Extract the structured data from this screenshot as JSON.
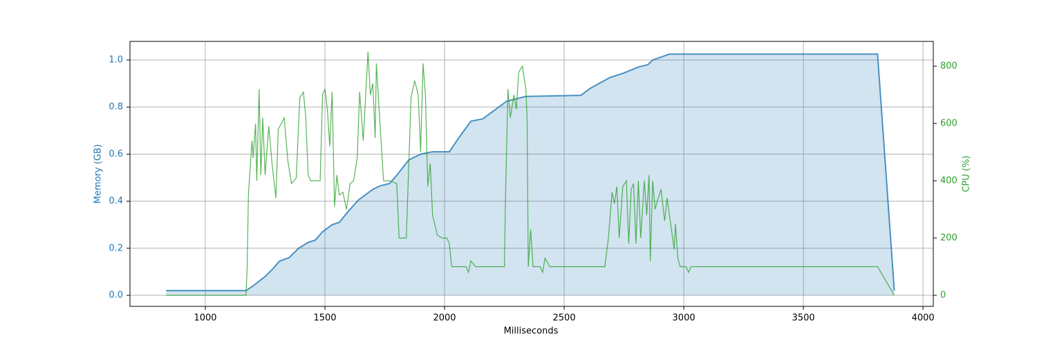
{
  "chart_data": {
    "type": "line",
    "xlabel": "Milliseconds",
    "ylabel": "Memory (GB)",
    "y2label": "CPU (%)",
    "xlim": [
      685,
      4043
    ],
    "ylim": [
      -0.047,
      1.079
    ],
    "y2lim": [
      -38.6,
      886.7
    ],
    "xticks": [
      1000,
      1500,
      2000,
      2500,
      3000,
      3500,
      4000
    ],
    "yticks": [
      {
        "value": 0,
        "label": "0.0"
      },
      0.2,
      0.4,
      0.6,
      0.8,
      {
        "value": 1,
        "label": "1.0"
      }
    ],
    "y2ticks": [
      0,
      200,
      400,
      600,
      800
    ],
    "grid": true,
    "series": [
      {
        "name": "Memory (GB)",
        "color": "#1f77b4",
        "fill": true,
        "x": [
          836,
          1170,
          1200,
          1250,
          1280,
          1310,
          1350,
          1390,
          1430,
          1460,
          1490,
          1530,
          1560,
          1600,
          1640,
          1700,
          1730,
          1770,
          1800,
          1850,
          1900,
          1950,
          2020,
          2060,
          2110,
          2160,
          2200,
          2260,
          2300,
          2340,
          2570,
          2610,
          2690,
          2750,
          2810,
          2850,
          2870,
          2940,
          3810,
          3880
        ],
        "values": [
          0.02,
          0.02,
          0.04,
          0.08,
          0.11,
          0.145,
          0.16,
          0.2,
          0.225,
          0.235,
          0.27,
          0.3,
          0.31,
          0.36,
          0.405,
          0.45,
          0.465,
          0.475,
          0.51,
          0.575,
          0.6,
          0.61,
          0.61,
          0.67,
          0.74,
          0.75,
          0.78,
          0.825,
          0.835,
          0.845,
          0.85,
          0.88,
          0.925,
          0.945,
          0.97,
          0.98,
          1.0,
          1.025,
          1.025,
          0.02
        ]
      },
      {
        "name": "CPU (%)",
        "color": "#2ca02c",
        "axis": "y2",
        "x": [
          836,
          1170,
          1175,
          1180,
          1195,
          1200,
          1210,
          1215,
          1225,
          1232,
          1240,
          1250,
          1265,
          1280,
          1295,
          1305,
          1330,
          1345,
          1360,
          1380,
          1395,
          1410,
          1420,
          1430,
          1440,
          1460,
          1480,
          1490,
          1500,
          1510,
          1520,
          1530,
          1540,
          1550,
          1560,
          1575,
          1590,
          1605,
          1620,
          1635,
          1645,
          1660,
          1680,
          1690,
          1700,
          1710,
          1715,
          1730,
          1745,
          1770,
          1800,
          1810,
          1840,
          1860,
          1875,
          1890,
          1900,
          1910,
          1920,
          1930,
          1940,
          1950,
          1970,
          1990,
          2010,
          2020,
          2030,
          2060,
          2090,
          2100,
          2110,
          2130,
          2180,
          2250,
          2255,
          2265,
          2275,
          2290,
          2300,
          2310,
          2325,
          2340,
          2345,
          2350,
          2360,
          2370,
          2400,
          2410,
          2420,
          2440,
          2500,
          2600,
          2670,
          2685,
          2700,
          2710,
          2720,
          2730,
          2745,
          2760,
          2770,
          2780,
          2790,
          2800,
          2810,
          2820,
          2835,
          2845,
          2855,
          2860,
          2870,
          2880,
          2890,
          2905,
          2920,
          2930,
          2945,
          2960,
          2965,
          2975,
          2985,
          3010,
          3020,
          3030,
          3100,
          3500,
          3810,
          3880
        ],
        "values": [
          0,
          0,
          100,
          350,
          540,
          480,
          600,
          400,
          720,
          420,
          620,
          420,
          590,
          450,
          340,
          580,
          620,
          470,
          390,
          410,
          690,
          710,
          620,
          420,
          400,
          400,
          400,
          700,
          720,
          650,
          520,
          710,
          310,
          420,
          350,
          360,
          300,
          390,
          400,
          480,
          710,
          540,
          850,
          700,
          740,
          550,
          810,
          600,
          400,
          400,
          390,
          200,
          200,
          690,
          750,
          700,
          500,
          810,
          700,
          380,
          460,
          280,
          210,
          200,
          200,
          180,
          100,
          100,
          100,
          80,
          120,
          100,
          100,
          100,
          350,
          720,
          620,
          700,
          650,
          780,
          800,
          720,
          620,
          100,
          230,
          100,
          100,
          80,
          130,
          100,
          100,
          100,
          100,
          200,
          360,
          320,
          380,
          200,
          380,
          400,
          180,
          370,
          390,
          180,
          400,
          200,
          400,
          280,
          420,
          120,
          400,
          300,
          330,
          370,
          260,
          340,
          250,
          160,
          250,
          130,
          100,
          100,
          80,
          100,
          100,
          100,
          100,
          0
        ]
      }
    ]
  }
}
